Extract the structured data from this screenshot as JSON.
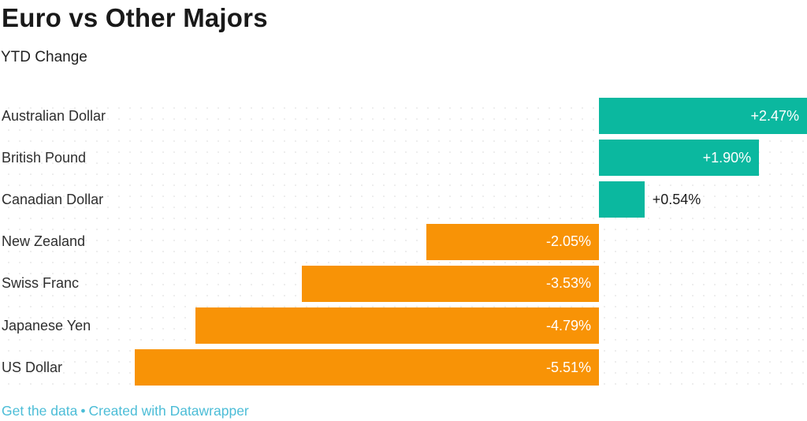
{
  "header": {
    "title": "Euro vs Other Majors",
    "subtitle": "YTD Change"
  },
  "chart_data": {
    "type": "bar",
    "orientation": "horizontal",
    "title": "Euro vs Other Majors",
    "subtitle": "YTD Change",
    "categories": [
      "Australian Dollar",
      "British Pound",
      "Canadian Dollar",
      "New Zealand",
      "Swiss Franc",
      "Japanese Yen",
      "US Dollar"
    ],
    "values": [
      2.47,
      1.9,
      0.54,
      -2.05,
      -3.53,
      -4.79,
      -5.51
    ],
    "value_labels": [
      "+2.47%",
      "+1.90%",
      "+0.54%",
      "-2.05%",
      "-3.53%",
      "-4.79%",
      "-5.51%"
    ],
    "unit": "%",
    "xlim": [
      -5.51,
      2.47
    ],
    "grid": false,
    "legend": "none",
    "positive_color": "#0bb89f",
    "negative_color": "#f89306",
    "label_inside_color": "#ffffff",
    "label_outside_color": "#1d1d1d",
    "category_label_color": "#2e2e2e"
  },
  "footer": {
    "get_data_label": "Get the data",
    "separator": "•",
    "credit_label": "Created with Datawrapper",
    "link_color": "#4cbdd7"
  }
}
